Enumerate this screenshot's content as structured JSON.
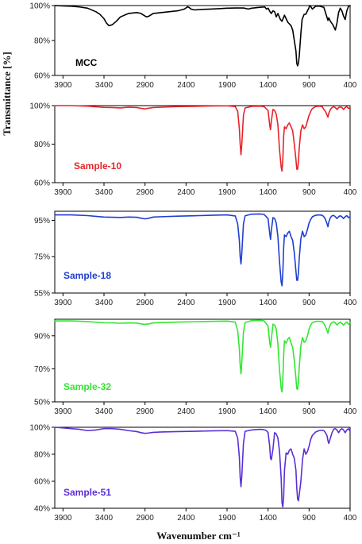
{
  "figure": {
    "ylabel": "Transmittance [%]",
    "xlabel": "Wavenumber cm⁻¹"
  },
  "chart_data": [
    {
      "type": "line",
      "label": "MCC",
      "color": "#000000",
      "xlim": [
        4000,
        400
      ],
      "x_ticks": [
        3900,
        3400,
        2900,
        2400,
        1900,
        1400,
        900,
        400
      ],
      "ylim": [
        60,
        100
      ],
      "y_ticks": [
        "60%",
        "80%",
        "100%"
      ],
      "y_tick_values": [
        60,
        80,
        100
      ],
      "series": [
        {
          "x": [
            4000,
            3900,
            3800,
            3700,
            3600,
            3500,
            3450,
            3400,
            3370,
            3340,
            3300,
            3250,
            3200,
            3100,
            3000,
            2950,
            2900,
            2880,
            2850,
            2800,
            2700,
            2600,
            2500,
            2420,
            2380,
            2360,
            2340,
            2300,
            2200,
            2100,
            2000,
            1900,
            1800,
            1700,
            1640,
            1600,
            1500,
            1440,
            1420,
            1400,
            1370,
            1360,
            1340,
            1320,
            1300,
            1280,
            1250,
            1230,
            1200,
            1160,
            1150,
            1120,
            1100,
            1080,
            1060,
            1050,
            1040,
            1030,
            1020,
            1000,
            985,
            960,
            940,
            920,
            900,
            895,
            880,
            860,
            820,
            780,
            720,
            700,
            680,
            670,
            660,
            640,
            610,
            590,
            580,
            560,
            540,
            520,
            500,
            480,
            460,
            440,
            420,
            400
          ],
          "y": [
            100,
            99.8,
            99.6,
            99.2,
            98.5,
            96.5,
            95,
            92.5,
            90,
            88.5,
            89,
            91,
            93.5,
            95.5,
            96,
            95.5,
            94,
            93.5,
            94,
            95.5,
            96,
            96.5,
            97,
            98,
            99.3,
            98.8,
            98,
            97.5,
            97.8,
            98,
            98.2,
            98.5,
            98.6,
            98.6,
            98,
            98.5,
            99,
            99.2,
            98,
            98.5,
            96,
            95.5,
            97,
            96.5,
            93.5,
            95.5,
            92,
            91,
            94.5,
            90.5,
            90,
            88.5,
            86,
            80,
            74,
            67,
            65.5,
            67,
            71,
            84,
            92,
            95,
            95,
            97,
            98.8,
            100,
            99.5,
            98,
            99.6,
            99.7,
            99,
            96,
            93,
            91.5,
            93,
            91,
            89,
            87,
            86,
            90,
            96,
            98.5,
            97,
            94,
            92,
            97,
            99.5,
            100
          ]
        }
      ]
    },
    {
      "type": "line",
      "label": "Sample-10",
      "color": "#e8232a",
      "xlim": [
        4000,
        400
      ],
      "x_ticks": [
        3900,
        3400,
        2900,
        2400,
        1900,
        1400,
        900,
        400
      ],
      "ylim": [
        60,
        100
      ],
      "y_ticks": [
        "60%",
        "80%",
        "100%"
      ],
      "y_tick_values": [
        60,
        80,
        100
      ],
      "series": [
        {
          "x": [
            4000,
            3800,
            3600,
            3500,
            3400,
            3300,
            3200,
            3100,
            3000,
            2950,
            2900,
            2850,
            2800,
            2700,
            2500,
            2300,
            2100,
            1900,
            1800,
            1770,
            1750,
            1740,
            1730,
            1720,
            1700,
            1680,
            1600,
            1500,
            1450,
            1400,
            1380,
            1370,
            1360,
            1340,
            1320,
            1300,
            1280,
            1260,
            1240,
            1230,
            1220,
            1210,
            1200,
            1180,
            1160,
            1140,
            1120,
            1100,
            1080,
            1060,
            1050,
            1040,
            1030,
            1020,
            1000,
            980,
            960,
            940,
            920,
            900,
            880,
            860,
            820,
            780,
            740,
            720,
            700,
            680,
            670,
            660,
            640,
            620,
            600,
            580,
            560,
            540,
            520,
            500,
            480,
            460,
            440,
            420,
            400
          ],
          "y": [
            100,
            100,
            99.7,
            99.4,
            99.1,
            99,
            98.8,
            99.2,
            99,
            98.6,
            98.3,
            98.7,
            99,
            99.2,
            99.5,
            99.6,
            99.8,
            99.9,
            99.5,
            97,
            88,
            80,
            74.5,
            80,
            95,
            98.8,
            99.6,
            99.7,
            99.5,
            97.5,
            90,
            87.5,
            92,
            98,
            97.5,
            95.5,
            90,
            77,
            68,
            66,
            72,
            84,
            89,
            88,
            90,
            91,
            89,
            87,
            80,
            72,
            67,
            67,
            71,
            78,
            87,
            90,
            88,
            89,
            92,
            95,
            97,
            98.5,
            99.5,
            99.7,
            99.5,
            98,
            97,
            95,
            94,
            96,
            98,
            99,
            99.4,
            99,
            98,
            99,
            99.3,
            99,
            98,
            99,
            99.5,
            98.5,
            99
          ]
        }
      ]
    },
    {
      "type": "line",
      "label": "Sample-18",
      "color": "#1f3fd0",
      "xlim": [
        4000,
        400
      ],
      "x_ticks": [
        3900,
        3400,
        2900,
        2400,
        1900,
        1400,
        900,
        400
      ],
      "ylim": [
        55,
        100
      ],
      "y_ticks": [
        "55%",
        "75%",
        "95%"
      ],
      "y_tick_values": [
        55,
        75,
        95
      ],
      "series": [
        {
          "x": [
            4000,
            3800,
            3600,
            3500,
            3400,
            3300,
            3200,
            3100,
            3000,
            2950,
            2900,
            2850,
            2800,
            2700,
            2500,
            2300,
            2100,
            1900,
            1800,
            1770,
            1750,
            1740,
            1730,
            1720,
            1700,
            1680,
            1600,
            1500,
            1450,
            1400,
            1380,
            1370,
            1360,
            1340,
            1320,
            1300,
            1280,
            1260,
            1240,
            1230,
            1220,
            1210,
            1200,
            1180,
            1160,
            1140,
            1120,
            1100,
            1080,
            1060,
            1050,
            1040,
            1030,
            1020,
            1000,
            980,
            960,
            940,
            920,
            900,
            880,
            860,
            820,
            780,
            740,
            720,
            700,
            680,
            670,
            660,
            640,
            620,
            600,
            580,
            560,
            540,
            520,
            500,
            480,
            460,
            440,
            420,
            400
          ],
          "y": [
            98,
            98,
            97.6,
            97.2,
            96.8,
            96.7,
            96.6,
            96.8,
            96.7,
            96.2,
            95.8,
            96.2,
            96.8,
            97,
            97.3,
            97.5,
            97.8,
            98,
            97.4,
            93,
            84,
            75,
            71,
            77,
            93,
            97.5,
            98.4,
            98.5,
            98.3,
            96,
            88,
            84.5,
            89.5,
            96.5,
            96,
            93.5,
            86,
            72,
            61,
            59,
            66,
            80,
            87,
            86,
            88,
            89,
            86,
            84,
            77,
            67,
            62,
            62,
            66,
            74,
            85,
            89,
            86,
            87,
            90,
            93.5,
            95.5,
            97,
            97.8,
            98,
            97.8,
            97,
            95.5,
            93,
            91.5,
            94,
            96.5,
            97.5,
            97.7,
            97,
            96,
            97,
            97.5,
            97,
            96,
            97,
            97.6,
            96.5,
            97
          ]
        }
      ]
    },
    {
      "type": "line",
      "label": "Sample-32",
      "color": "#33e633",
      "xlim": [
        4000,
        400
      ],
      "x_ticks": [
        3900,
        3400,
        2900,
        2400,
        1900,
        1400,
        900,
        400
      ],
      "ylim": [
        50,
        100
      ],
      "y_ticks": [
        "50%",
        "70%",
        "90%"
      ],
      "y_tick_values": [
        50,
        70,
        90
      ],
      "series": [
        {
          "x": [
            4000,
            3800,
            3600,
            3500,
            3400,
            3300,
            3200,
            3100,
            3000,
            2950,
            2900,
            2850,
            2800,
            2700,
            2500,
            2300,
            2100,
            1900,
            1800,
            1770,
            1750,
            1740,
            1730,
            1720,
            1700,
            1680,
            1600,
            1500,
            1450,
            1400,
            1380,
            1370,
            1360,
            1340,
            1320,
            1300,
            1280,
            1260,
            1240,
            1230,
            1220,
            1210,
            1200,
            1180,
            1160,
            1140,
            1120,
            1100,
            1080,
            1060,
            1050,
            1040,
            1030,
            1020,
            1000,
            980,
            960,
            940,
            920,
            900,
            880,
            860,
            820,
            780,
            740,
            720,
            700,
            680,
            670,
            660,
            640,
            620,
            600,
            580,
            560,
            540,
            520,
            500,
            480,
            460,
            440,
            420,
            400
          ],
          "y": [
            99,
            99,
            98.6,
            98.2,
            97.9,
            97.8,
            97.6,
            97.8,
            97.7,
            97.2,
            96.9,
            97.2,
            97.8,
            98,
            98.3,
            98.5,
            98.7,
            98.9,
            98.3,
            93,
            82,
            72,
            67,
            74,
            92,
            98,
            99.2,
            99.3,
            99.1,
            96,
            86,
            83,
            88,
            97,
            96.5,
            94,
            85,
            69,
            58,
            56,
            63,
            78,
            87,
            85.5,
            88,
            89,
            85.5,
            83,
            75,
            64,
            58,
            57.5,
            62,
            71,
            84,
            89,
            86,
            87,
            90,
            94,
            96.5,
            98,
            98.7,
            98.8,
            98.6,
            97.5,
            95.5,
            93,
            91.5,
            94,
            97,
            98,
            98.5,
            97.8,
            96.5,
            97.5,
            98.2,
            97.5,
            96.5,
            97.5,
            98.4,
            97,
            97.8
          ]
        }
      ]
    },
    {
      "type": "line",
      "label": "Sample-51",
      "color": "#5b2fd6",
      "xlim": [
        4000,
        400
      ],
      "x_ticks": [
        3900,
        3400,
        2900,
        2400,
        1900,
        1400,
        900,
        400
      ],
      "ylim": [
        40,
        100
      ],
      "y_ticks": [
        "40%",
        "60%",
        "80%",
        "100%"
      ],
      "y_tick_values": [
        40,
        60,
        80,
        100
      ],
      "series": [
        {
          "x": [
            4000,
            3900,
            3800,
            3700,
            3600,
            3500,
            3400,
            3300,
            3200,
            3100,
            3000,
            2950,
            2900,
            2850,
            2800,
            2700,
            2500,
            2300,
            2100,
            1900,
            1800,
            1770,
            1750,
            1740,
            1730,
            1720,
            1700,
            1680,
            1600,
            1500,
            1450,
            1420,
            1400,
            1380,
            1370,
            1360,
            1340,
            1320,
            1300,
            1280,
            1260,
            1240,
            1230,
            1220,
            1210,
            1200,
            1180,
            1160,
            1140,
            1120,
            1100,
            1080,
            1060,
            1050,
            1040,
            1030,
            1020,
            1000,
            980,
            960,
            940,
            920,
            900,
            880,
            860,
            820,
            780,
            740,
            720,
            700,
            680,
            670,
            660,
            640,
            620,
            600,
            580,
            560,
            540,
            520,
            500,
            480,
            460,
            440,
            420,
            400
          ],
          "y": [
            100,
            99.5,
            99,
            98.5,
            97.5,
            98,
            99,
            99,
            98.5,
            97.5,
            96.8,
            96,
            95.5,
            95.8,
            96.2,
            96.5,
            96.8,
            97,
            97.3,
            97.5,
            97,
            92,
            78,
            63,
            56,
            64,
            88,
            97,
            98,
            98.5,
            98.2,
            97.5,
            96,
            86,
            77,
            76,
            84,
            96,
            95,
            92,
            82,
            62,
            44,
            41,
            48,
            68,
            81,
            80,
            83,
            84,
            80,
            77,
            68,
            55,
            47,
            45.5,
            50,
            60,
            76,
            84,
            80,
            82,
            86,
            91,
            94,
            96.5,
            97.5,
            97.8,
            97.5,
            96,
            93.5,
            90,
            88,
            92,
            96,
            98.5,
            99,
            98,
            96,
            98,
            99,
            98,
            96,
            98,
            99,
            97
          ]
        }
      ]
    }
  ]
}
